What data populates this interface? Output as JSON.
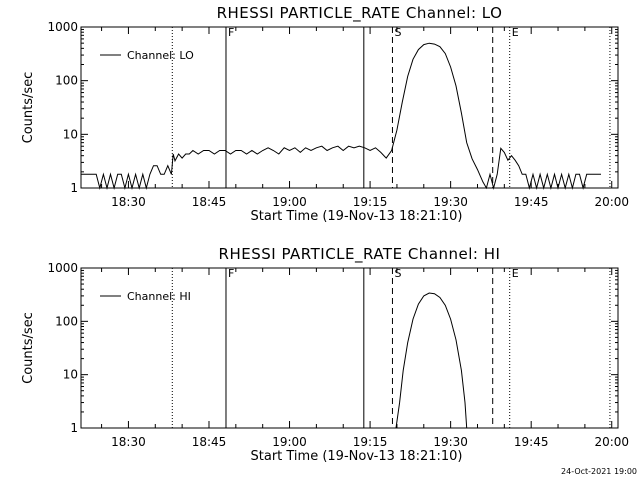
{
  "footer": {
    "timestamp": "24-Oct-2021 19:00"
  },
  "chart_data": [
    {
      "type": "line",
      "title": "RHESSI PARTICLE_RATE Channel: LO",
      "xlabel": "Start Time (19-Nov-13 18:21:10)",
      "ylabel": "Counts/sec",
      "y_scale": "log",
      "ylim": [
        1,
        1000
      ],
      "y_ticks": [
        {
          "value": 1,
          "label": "1"
        },
        {
          "value": 10,
          "label": "10"
        },
        {
          "value": 100,
          "label": "100"
        },
        {
          "value": 1000,
          "label": "1000"
        }
      ],
      "xlim": [
        "18:21:10",
        "20:01:10"
      ],
      "x_ticks": [
        {
          "value": "18:30",
          "label": "18:30"
        },
        {
          "value": "18:45",
          "label": "18:45"
        },
        {
          "value": "19:00",
          "label": "19:00"
        },
        {
          "value": "19:15",
          "label": "19:15"
        },
        {
          "value": "19:30",
          "label": "19:30"
        },
        {
          "value": "19:45",
          "label": "19:45"
        },
        {
          "value": "20:00",
          "label": "20:00"
        }
      ],
      "legend": {
        "position": "top-left",
        "entries": [
          "Channel: LO"
        ]
      },
      "markers": [
        {
          "time": "18:38:10",
          "style": "dotted",
          "label": ""
        },
        {
          "time": "18:48:10",
          "style": "solid",
          "label": "F"
        },
        {
          "time": "19:13:50",
          "style": "solid",
          "label": ""
        },
        {
          "time": "19:19:10",
          "style": "dashed",
          "label": "S"
        },
        {
          "time": "19:37:50",
          "style": "dashed",
          "label": ""
        },
        {
          "time": "19:41:00",
          "style": "dotted",
          "label": "E"
        },
        {
          "time": "19:59:40",
          "style": "dotted",
          "label": ""
        }
      ],
      "series": [
        {
          "name": "Channel: LO",
          "points": [
            [
              "18:21:10",
              1.8
            ],
            [
              "18:24:00",
              1.8
            ],
            [
              "18:24:40",
              1
            ],
            [
              "18:25:20",
              1.8
            ],
            [
              "18:26:00",
              1
            ],
            [
              "18:26:40",
              1.8
            ],
            [
              "18:27:20",
              1
            ],
            [
              "18:28:00",
              1.8
            ],
            [
              "18:28:40",
              1.8
            ],
            [
              "18:29:20",
              1
            ],
            [
              "18:30:00",
              1.8
            ],
            [
              "18:30:40",
              1
            ],
            [
              "18:31:20",
              1.8
            ],
            [
              "18:32:00",
              1
            ],
            [
              "18:32:40",
              1.8
            ],
            [
              "18:33:20",
              1
            ],
            [
              "18:34:00",
              1.8
            ],
            [
              "18:34:40",
              2.6
            ],
            [
              "18:35:20",
              2.6
            ],
            [
              "18:36:00",
              1.8
            ],
            [
              "18:36:40",
              1.8
            ],
            [
              "18:37:20",
              2.6
            ],
            [
              "18:38:00",
              1.8
            ],
            [
              "18:38:20",
              4.3
            ],
            [
              "18:38:40",
              3.2
            ],
            [
              "18:39:20",
              4.3
            ],
            [
              "18:40:00",
              3.6
            ],
            [
              "18:40:40",
              4.3
            ],
            [
              "18:41:20",
              4.3
            ],
            [
              "18:42:00",
              5.0
            ],
            [
              "18:43:00",
              4.3
            ],
            [
              "18:44:00",
              5.0
            ],
            [
              "18:45:00",
              5.0
            ],
            [
              "18:46:00",
              4.3
            ],
            [
              "18:47:00",
              5.0
            ],
            [
              "18:48:00",
              5.0
            ],
            [
              "18:49:00",
              4.3
            ],
            [
              "18:50:00",
              5.0
            ],
            [
              "18:51:00",
              5.0
            ],
            [
              "18:52:00",
              4.3
            ],
            [
              "18:53:00",
              5.0
            ],
            [
              "18:54:00",
              4.3
            ],
            [
              "18:55:00",
              5.0
            ],
            [
              "18:56:00",
              5.6
            ],
            [
              "18:57:00",
              5.0
            ],
            [
              "18:58:00",
              4.3
            ],
            [
              "18:59:00",
              5.6
            ],
            [
              "19:00:00",
              5.0
            ],
            [
              "19:01:00",
              5.6
            ],
            [
              "19:02:00",
              4.6
            ],
            [
              "19:03:00",
              5.6
            ],
            [
              "19:04:00",
              5.0
            ],
            [
              "19:05:00",
              5.6
            ],
            [
              "19:06:00",
              6.0
            ],
            [
              "19:07:00",
              5.0
            ],
            [
              "19:08:00",
              5.6
            ],
            [
              "19:09:00",
              6.0
            ],
            [
              "19:10:00",
              5.0
            ],
            [
              "19:11:00",
              6.0
            ],
            [
              "19:12:00",
              5.6
            ],
            [
              "19:13:00",
              6.0
            ],
            [
              "19:14:00",
              5.6
            ],
            [
              "19:15:00",
              5.0
            ],
            [
              "19:16:00",
              5.6
            ],
            [
              "19:17:00",
              4.6
            ],
            [
              "19:18:00",
              3.6
            ],
            [
              "19:19:00",
              5.0
            ],
            [
              "19:20:00",
              12
            ],
            [
              "19:21:00",
              40
            ],
            [
              "19:22:00",
              120
            ],
            [
              "19:23:00",
              250
            ],
            [
              "19:24:00",
              380
            ],
            [
              "19:25:00",
              470
            ],
            [
              "19:26:00",
              500
            ],
            [
              "19:27:00",
              480
            ],
            [
              "19:28:00",
              430
            ],
            [
              "19:29:00",
              320
            ],
            [
              "19:30:00",
              180
            ],
            [
              "19:31:00",
              80
            ],
            [
              "19:32:00",
              25
            ],
            [
              "19:33:00",
              7
            ],
            [
              "19:34:00",
              3.5
            ],
            [
              "19:35:00",
              2.2
            ],
            [
              "19:36:00",
              1.3
            ],
            [
              "19:36:40",
              1
            ],
            [
              "19:37:20",
              1.8
            ],
            [
              "19:38:00",
              1
            ],
            [
              "19:38:40",
              1.8
            ],
            [
              "19:39:20",
              5.5
            ],
            [
              "19:40:00",
              4.6
            ],
            [
              "19:40:40",
              3.3
            ],
            [
              "19:41:20",
              4.0
            ],
            [
              "19:42:00",
              3.3
            ],
            [
              "19:42:40",
              2.6
            ],
            [
              "19:43:20",
              1.8
            ],
            [
              "19:44:00",
              1.8
            ],
            [
              "19:44:40",
              1
            ],
            [
              "19:45:20",
              1.8
            ],
            [
              "19:46:00",
              1
            ],
            [
              "19:46:40",
              1.8
            ],
            [
              "19:47:20",
              1
            ],
            [
              "19:48:00",
              1.8
            ],
            [
              "19:48:40",
              1
            ],
            [
              "19:49:20",
              1.8
            ],
            [
              "19:50:00",
              1
            ],
            [
              "19:50:40",
              1.8
            ],
            [
              "19:51:20",
              1
            ],
            [
              "19:52:00",
              1.8
            ],
            [
              "19:52:40",
              1
            ],
            [
              "19:53:20",
              1.8
            ],
            [
              "19:54:00",
              1.8
            ],
            [
              "19:54:40",
              1
            ],
            [
              "19:55:20",
              1.8
            ],
            [
              "19:56:00",
              1.8
            ],
            [
              "19:58:00",
              1.8
            ]
          ]
        }
      ]
    },
    {
      "type": "line",
      "title": "RHESSI PARTICLE_RATE Channel: HI",
      "xlabel": "Start Time (19-Nov-13 18:21:10)",
      "ylabel": "Counts/sec",
      "y_scale": "log",
      "ylim": [
        1,
        1000
      ],
      "y_ticks": [
        {
          "value": 1,
          "label": "1"
        },
        {
          "value": 10,
          "label": "10"
        },
        {
          "value": 100,
          "label": "100"
        },
        {
          "value": 1000,
          "label": "1000"
        }
      ],
      "xlim": [
        "18:21:10",
        "20:01:10"
      ],
      "x_ticks": [
        {
          "value": "18:30",
          "label": "18:30"
        },
        {
          "value": "18:45",
          "label": "18:45"
        },
        {
          "value": "19:00",
          "label": "19:00"
        },
        {
          "value": "19:15",
          "label": "19:15"
        },
        {
          "value": "19:30",
          "label": "19:30"
        },
        {
          "value": "19:45",
          "label": "19:45"
        },
        {
          "value": "20:00",
          "label": "20:00"
        }
      ],
      "legend": {
        "position": "top-left",
        "entries": [
          "Channel: HI"
        ]
      },
      "markers": [
        {
          "time": "18:38:10",
          "style": "dotted",
          "label": ""
        },
        {
          "time": "18:48:10",
          "style": "solid",
          "label": "F"
        },
        {
          "time": "19:13:50",
          "style": "solid",
          "label": ""
        },
        {
          "time": "19:19:10",
          "style": "dashed",
          "label": "S"
        },
        {
          "time": "19:37:50",
          "style": "dashed",
          "label": ""
        },
        {
          "time": "19:41:00",
          "style": "dotted",
          "label": "E"
        },
        {
          "time": "19:59:40",
          "style": "dotted",
          "label": ""
        }
      ],
      "series": [
        {
          "name": "Channel: HI",
          "points": [
            [
              "19:19:50",
              1
            ],
            [
              "19:20:30",
              3
            ],
            [
              "19:21:10",
              12
            ],
            [
              "19:22:00",
              40
            ],
            [
              "19:23:00",
              110
            ],
            [
              "19:24:00",
              210
            ],
            [
              "19:25:00",
              300
            ],
            [
              "19:26:00",
              340
            ],
            [
              "19:27:00",
              330
            ],
            [
              "19:28:00",
              280
            ],
            [
              "19:29:00",
              200
            ],
            [
              "19:30:00",
              110
            ],
            [
              "19:31:00",
              45
            ],
            [
              "19:32:00",
              12
            ],
            [
              "19:32:40",
              3
            ],
            [
              "19:33:00",
              1
            ]
          ]
        }
      ]
    }
  ]
}
